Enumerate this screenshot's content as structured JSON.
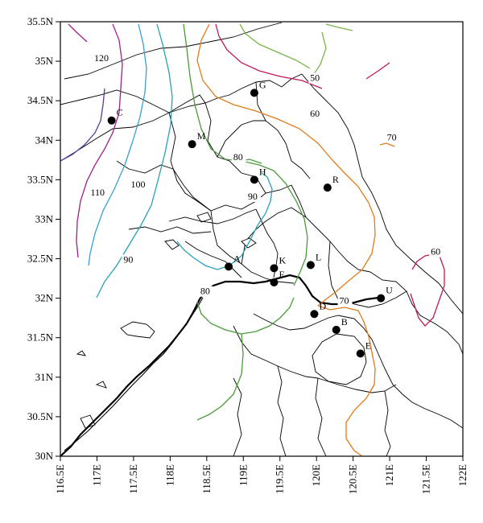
{
  "colors": {
    "c50": "#7ab648",
    "c60": "#e07b1a",
    "c60b": "#c0175d",
    "c70": "#e07b1a",
    "c80": "#4a9a3a",
    "c90": "#2aa0b8",
    "c100": "#3aa0d0",
    "c110": "#5a3ba0",
    "c120": "#a0208a"
  },
  "x_ticks": [
    116.5,
    117,
    117.5,
    118,
    118.5,
    119,
    119.5,
    120,
    120.5,
    121,
    121.5,
    122
  ],
  "x_tick_labels": [
    "116.5E",
    "117E",
    "117.5E",
    "118E",
    "118.5E",
    "119E",
    "119.5E",
    "120E",
    "120.5E",
    "121E",
    "121.5E",
    "122E"
  ],
  "y_ticks": [
    30,
    30.5,
    31,
    31.5,
    32,
    32.5,
    33,
    33.5,
    34,
    34.5,
    35,
    35.5
  ],
  "y_tick_labels": [
    "30N",
    "30.5N",
    "31N",
    "31.5N",
    "32N",
    "32.5N",
    "33N",
    "33.5N",
    "34N",
    "34.5N",
    "35N",
    "35.5N"
  ],
  "extent": {
    "lon": [
      116.5,
      122
    ],
    "lat": [
      30,
      35.5
    ]
  },
  "stations": [
    {
      "name": "C",
      "lon": 117.2,
      "lat": 34.25
    },
    {
      "name": "M",
      "lon": 118.3,
      "lat": 33.95
    },
    {
      "name": "G",
      "lon": 119.15,
      "lat": 34.6
    },
    {
      "name": "H",
      "lon": 119.15,
      "lat": 33.5
    },
    {
      "name": "R",
      "lon": 120.15,
      "lat": 33.4
    },
    {
      "name": "A",
      "lon": 118.8,
      "lat": 32.4
    },
    {
      "name": "K",
      "lon": 119.42,
      "lat": 32.38
    },
    {
      "name": "F",
      "lon": 119.42,
      "lat": 32.2
    },
    {
      "name": "L",
      "lon": 119.92,
      "lat": 32.42
    },
    {
      "name": "D",
      "lon": 119.97,
      "lat": 31.8
    },
    {
      "name": "B",
      "lon": 120.27,
      "lat": 31.6
    },
    {
      "name": "U",
      "lon": 120.88,
      "lat": 32.0
    },
    {
      "name": "E",
      "lon": 120.6,
      "lat": 31.3
    }
  ],
  "contour_labels": [
    {
      "text": "120",
      "lon": 117.05,
      "lat": 35.0
    },
    {
      "text": "110",
      "lon": 117.0,
      "lat": 33.3
    },
    {
      "text": "100",
      "lon": 117.55,
      "lat": 33.4
    },
    {
      "text": "90",
      "lon": 117.45,
      "lat": 32.45
    },
    {
      "text": "90",
      "lon": 119.15,
      "lat": 33.25
    },
    {
      "text": "80",
      "lon": 118.95,
      "lat": 33.75
    },
    {
      "text": "80",
      "lon": 118.5,
      "lat": 32.05
    },
    {
      "text": "70",
      "lon": 120.4,
      "lat": 31.93
    },
    {
      "text": "70",
      "lon": 121.05,
      "lat": 34.0
    },
    {
      "text": "60",
      "lon": 120.0,
      "lat": 34.3
    },
    {
      "text": "60",
      "lon": 121.65,
      "lat": 32.55
    },
    {
      "text": "50",
      "lon": 120.0,
      "lat": 34.75
    }
  ]
}
